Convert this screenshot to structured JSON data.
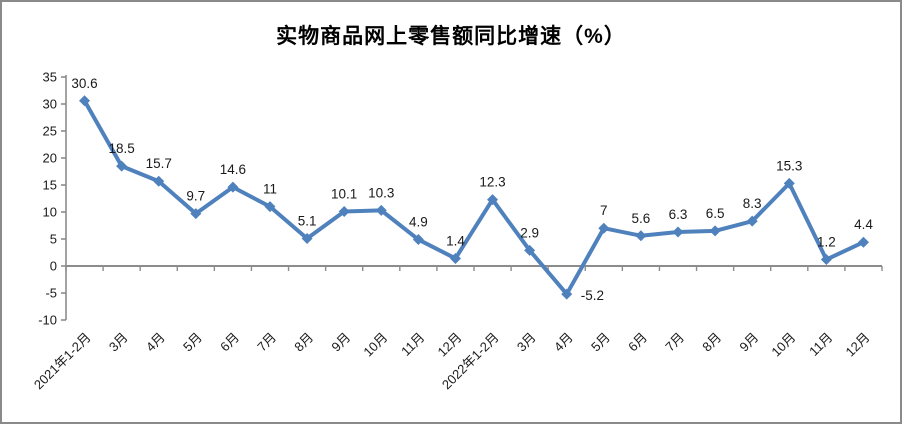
{
  "frame": {
    "background": "#ffffff",
    "border_color": "#8a8a8a"
  },
  "chart_data": {
    "type": "line",
    "title": "实物商品网上零售额同比增速（%）",
    "categories": [
      "2021年1-2月",
      "3月",
      "4月",
      "5月",
      "6月",
      "7月",
      "8月",
      "9月",
      "10月",
      "11月",
      "12月",
      "2022年1-2月",
      "3月",
      "4月",
      "5月",
      "6月",
      "7月",
      "8月",
      "9月",
      "10月",
      "11月",
      "12月"
    ],
    "values": [
      30.6,
      18.5,
      15.7,
      9.7,
      14.6,
      11,
      5.1,
      10.1,
      10.3,
      4.9,
      1.4,
      12.3,
      2.9,
      -5.2,
      7,
      5.6,
      6.3,
      6.5,
      8.3,
      15.3,
      1.2,
      4.4
    ],
    "data_labels": [
      "30.6",
      "18.5",
      "15.7",
      "9.7",
      "14.6",
      "11",
      "5.1",
      "10.1",
      "10.3",
      "4.9",
      "1.4",
      "12.3",
      "2.9",
      "-5.2",
      "7",
      "5.6",
      "6.3",
      "6.5",
      "8.3",
      "15.3",
      "1.2",
      "4.4"
    ],
    "xlabel": "",
    "ylabel": "",
    "ylim": [
      -10,
      35
    ],
    "yticks": [
      -10,
      -5,
      0,
      5,
      10,
      15,
      20,
      25,
      30,
      35
    ],
    "grid": false,
    "legend_position": "none",
    "marker": "diamond",
    "series_color": "#4F81BD",
    "axis_color": "#8C8C8C",
    "text_color": "#1a1a1a",
    "label_overrides": {
      "13": "right"
    }
  }
}
